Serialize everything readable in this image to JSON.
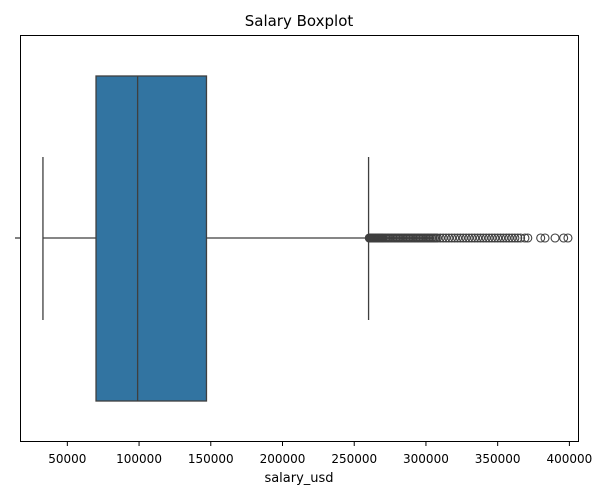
{
  "chart_data": {
    "type": "box",
    "title": "Salary Boxplot",
    "xlabel": "salary_usd",
    "ylabel": "",
    "xlim": [
      17000,
      406000
    ],
    "xticks": [
      50000,
      100000,
      150000,
      200000,
      250000,
      300000,
      350000,
      400000
    ],
    "xtick_labels": [
      "50000",
      "100000",
      "150000",
      "200000",
      "250000",
      "300000",
      "350000",
      "400000"
    ],
    "box": {
      "whisker_low": 33000,
      "q1": 70000,
      "median": 99000,
      "q3": 147000,
      "whisker_high": 260000,
      "color": "#3274a1",
      "edge_color": "#3f3f3f"
    },
    "outliers": [
      260500,
      261000,
      261500,
      262000,
      262500,
      263000,
      263500,
      264000,
      264500,
      265000,
      265500,
      266000,
      266500,
      267000,
      267500,
      268000,
      268500,
      269000,
      269500,
      270000,
      271000,
      272000,
      273000,
      274000,
      275000,
      276000,
      277000,
      278000,
      279000,
      280000,
      281000,
      282000,
      283000,
      284000,
      285000,
      286000,
      287000,
      288000,
      289000,
      290000,
      291000,
      292000,
      293000,
      294000,
      295000,
      296000,
      297000,
      298000,
      299000,
      300000,
      301000,
      302000,
      303000,
      304000,
      305000,
      306000,
      307000,
      308000,
      310000,
      312000,
      314000,
      316000,
      318000,
      320000,
      322000,
      324000,
      326000,
      328000,
      330000,
      332000,
      334000,
      336000,
      338000,
      340000,
      342000,
      344000,
      346000,
      348000,
      350000,
      352000,
      354000,
      356000,
      358000,
      360000,
      362000,
      364000,
      366000,
      369000,
      371000,
      380000,
      383000,
      390000,
      396000,
      399000
    ],
    "grid": false,
    "legend": "none"
  }
}
